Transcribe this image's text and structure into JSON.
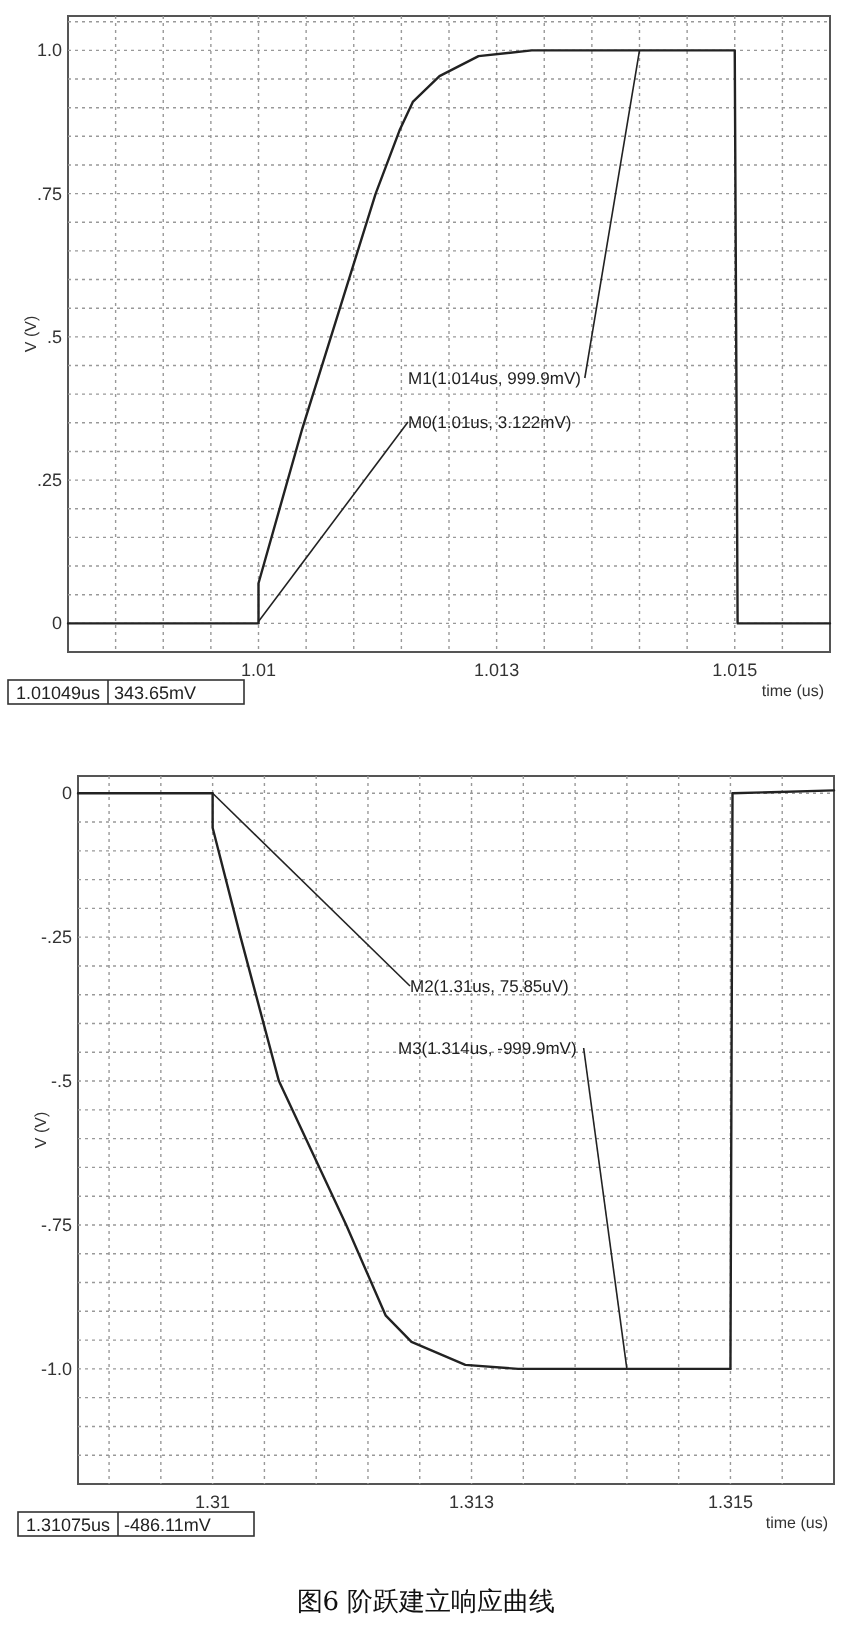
{
  "chart_data": [
    {
      "type": "line",
      "xlabel": "time (us)",
      "ylabel": "V (V)",
      "grid": true,
      "xlim": [
        1.008,
        1.016
      ],
      "ylim": [
        -0.05,
        1.06
      ],
      "xticks": [
        {
          "value": 1.0085,
          "label": null
        },
        {
          "value": 1.009,
          "label": null
        },
        {
          "value": 1.0095,
          "label": null
        },
        1.01,
        {
          "value": 1.0105,
          "label": null
        },
        {
          "value": 1.011,
          "label": null
        },
        {
          "value": 1.0115,
          "label": null
        },
        {
          "value": 1.012,
          "label": null
        },
        {
          "value": 1.0125,
          "label": "1.013"
        },
        {
          "value": 1.013,
          "label": null
        },
        {
          "value": 1.0135,
          "label": null
        },
        {
          "value": 1.014,
          "label": null
        },
        {
          "value": 1.0145,
          "label": null
        },
        1.015,
        {
          "value": 1.0155,
          "label": null
        }
      ],
      "yticks": [
        0,
        {
          "value": 0.05,
          "label": null
        },
        {
          "value": 0.1,
          "label": null
        },
        {
          "value": 0.15,
          "label": null
        },
        {
          "value": 0.2,
          "label": null
        },
        {
          "value": 0.25,
          "label": ".25"
        },
        {
          "value": 0.3,
          "label": null
        },
        {
          "value": 0.35,
          "label": null
        },
        {
          "value": 0.4,
          "label": null
        },
        {
          "value": 0.45,
          "label": null
        },
        {
          "value": 0.5,
          "label": ".5"
        },
        {
          "value": 0.55,
          "label": null
        },
        {
          "value": 0.6,
          "label": null
        },
        {
          "value": 0.65,
          "label": null
        },
        {
          "value": 0.7,
          "label": null
        },
        {
          "value": 0.75,
          "label": ".75"
        },
        {
          "value": 0.8,
          "label": null
        },
        {
          "value": 0.85,
          "label": null
        },
        {
          "value": 0.9,
          "label": null
        },
        {
          "value": 0.95,
          "label": null
        },
        {
          "value": 1.0,
          "label": "1.0"
        },
        {
          "value": 1.05,
          "label": null
        }
      ],
      "series": [
        {
          "color": "#222222",
          "x": [
            1.008,
            1.01,
            1.01,
            1.01046,
            1.01123,
            1.01148,
            1.01162,
            1.0119,
            1.01231,
            1.01287,
            1.015,
            1.01503,
            1.016
          ],
          "values": [
            0,
            0,
            0.07,
            0.34,
            0.75,
            0.86,
            0.91,
            0.955,
            0.99,
            1.0,
            1.0,
            0.0,
            0.0
          ]
        }
      ],
      "annotations": [
        {
          "text": "M0(1.01us, 3.122mV)",
          "x": 1.01,
          "y": 0.003122
        },
        {
          "text": "M1(1.014us, 999.9mV)",
          "x": 1.014,
          "y": 0.9999
        },
        "1.01049us",
        "343.65mV"
      ]
    },
    {
      "type": "line",
      "xlabel": "time (us)",
      "ylabel": "V (V)",
      "grid": true,
      "xlim": [
        1.3087,
        1.316
      ],
      "ylim": [
        -1.2,
        0.03
      ],
      "xticks": [
        {
          "value": 1.309,
          "label": null
        },
        {
          "value": 1.3095,
          "label": null
        },
        1.31,
        {
          "value": 1.3105,
          "label": null
        },
        {
          "value": 1.311,
          "label": null
        },
        {
          "value": 1.3115,
          "label": null
        },
        {
          "value": 1.312,
          "label": null
        },
        {
          "value": 1.3125,
          "label": "1.313"
        },
        {
          "value": 1.313,
          "label": null
        },
        {
          "value": 1.3135,
          "label": null
        },
        {
          "value": 1.314,
          "label": null
        },
        {
          "value": 1.3145,
          "label": null
        },
        1.315,
        {
          "value": 1.3155,
          "label": null
        }
      ],
      "yticks": [
        {
          "value": -1.15,
          "label": null
        },
        {
          "value": -1.1,
          "label": null
        },
        {
          "value": -1.05,
          "label": null
        },
        {
          "value": -1.0,
          "label": "-1.0"
        },
        {
          "value": -0.95,
          "label": null
        },
        {
          "value": -0.9,
          "label": null
        },
        {
          "value": -0.85,
          "label": null
        },
        {
          "value": -0.8,
          "label": null
        },
        {
          "value": -0.75,
          "label": "-.75"
        },
        {
          "value": -0.7,
          "label": null
        },
        {
          "value": -0.65,
          "label": null
        },
        {
          "value": -0.6,
          "label": null
        },
        {
          "value": -0.55,
          "label": null
        },
        {
          "value": -0.5,
          "label": "-.5"
        },
        {
          "value": -0.45,
          "label": null
        },
        {
          "value": -0.4,
          "label": null
        },
        {
          "value": -0.35,
          "label": null
        },
        {
          "value": -0.3,
          "label": null
        },
        {
          "value": -0.25,
          "label": "-.25"
        },
        {
          "value": -0.2,
          "label": null
        },
        {
          "value": -0.15,
          "label": null
        },
        {
          "value": -0.1,
          "label": null
        },
        {
          "value": -0.05,
          "label": null
        },
        0
      ],
      "series": [
        {
          "color": "#222222",
          "x": [
            1.3087,
            1.31,
            1.31,
            1.31027,
            1.31064,
            1.31129,
            1.31167,
            1.31192,
            1.31244,
            1.31295,
            1.315,
            1.31502,
            1.316
          ],
          "values": [
            0,
            0,
            -0.06,
            -0.25,
            -0.5,
            -0.75,
            -0.907,
            -0.953,
            -0.993,
            -1.0,
            -1.0,
            0,
            0.005
          ]
        }
      ],
      "annotations": [
        {
          "text": "M2(1.31us, 75.85uV)",
          "x": 1.31,
          "y": 7.585e-05
        },
        {
          "text": "M3(1.314us, -999.9mV)",
          "x": 1.314,
          "y": -0.9999
        },
        "1.31075us",
        "-486.11mV",
        "图6 阶跃建立响应曲线"
      ]
    }
  ]
}
